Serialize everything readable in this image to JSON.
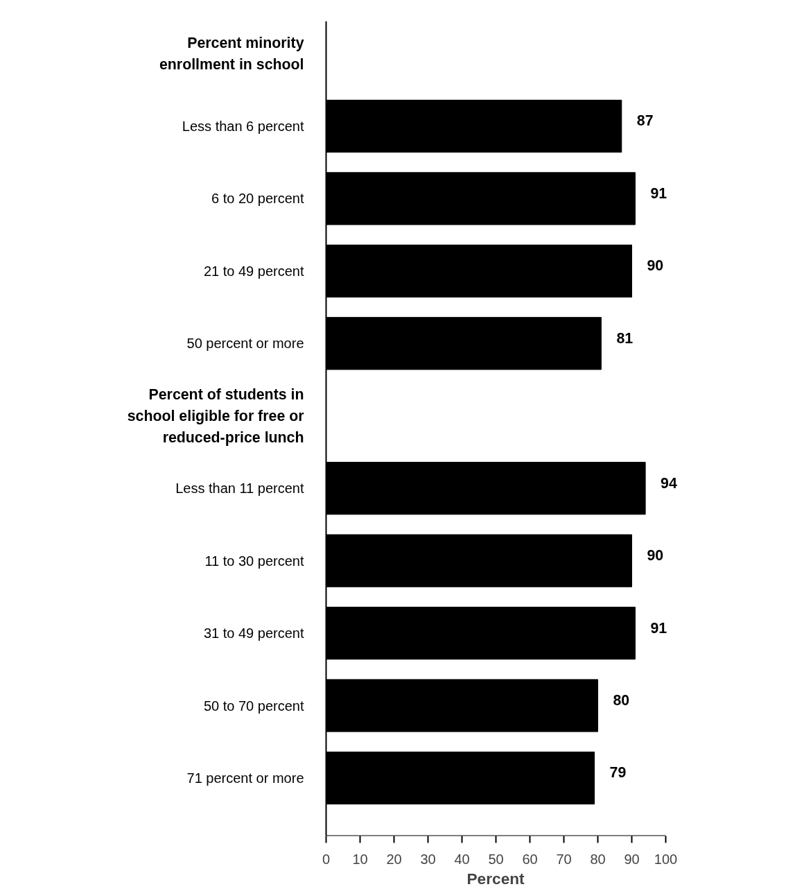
{
  "chart_data": {
    "type": "bar",
    "orientation": "horizontal",
    "xlabel": "Percent",
    "categories": [
      "Percent minority\nenrollment in school",
      "Less than 6 percent",
      "6 to 20 percent",
      "21 to 49 percent",
      "50 percent or more",
      "Percent of students in\nschool eligible for free or\nreduced-price lunch",
      "Less than 11 percent",
      "11 to 30 percent",
      "31 to 49 percent",
      "50 to 70 percent",
      "71 percent or more"
    ],
    "values": [
      null,
      87,
      91,
      90,
      81,
      null,
      94,
      90,
      91,
      80,
      79
    ],
    "color": "#000000",
    "xlim": [
      0,
      100
    ],
    "xticks": [
      0,
      10,
      20,
      30,
      40,
      50,
      60,
      70,
      80,
      90,
      100
    ],
    "data_labels": true,
    "grid": false
  }
}
